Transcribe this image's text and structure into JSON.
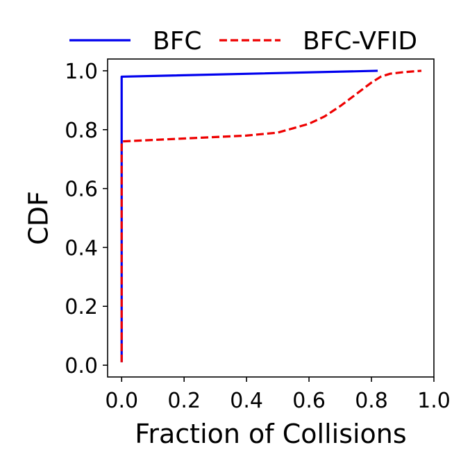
{
  "chart_data": {
    "type": "line",
    "title": "",
    "xlabel": "Fraction of Collisions",
    "ylabel": "CDF",
    "xlim": [
      -0.045,
      1.0
    ],
    "ylim": [
      -0.04,
      1.04
    ],
    "xticks": [
      0.0,
      0.2,
      0.4,
      0.6,
      0.8,
      1.0
    ],
    "xtick_labels": [
      "0.0",
      "0.2",
      "0.4",
      "0.6",
      "0.8",
      "1.0"
    ],
    "yticks": [
      0.0,
      0.2,
      0.4,
      0.6,
      0.8,
      1.0
    ],
    "ytick_labels": [
      "0.0",
      "0.2",
      "0.4",
      "0.6",
      "0.8",
      "1.0"
    ],
    "grid": false,
    "legend": "top, outside plot, horizontal",
    "series": [
      {
        "name": "BFC",
        "color": "#0000ee",
        "style": "solid",
        "x": [
          0.0,
          0.0,
          0.82
        ],
        "y": [
          0.01,
          0.98,
          1.0
        ]
      },
      {
        "name": "BFC-VFID",
        "color": "#ee0000",
        "style": "dashed",
        "x": [
          0.0,
          0.0,
          0.1,
          0.2,
          0.3,
          0.4,
          0.5,
          0.55,
          0.6,
          0.65,
          0.7,
          0.75,
          0.8,
          0.83,
          0.86,
          0.9,
          0.96
        ],
        "y": [
          0.01,
          0.76,
          0.765,
          0.77,
          0.775,
          0.78,
          0.79,
          0.805,
          0.82,
          0.845,
          0.88,
          0.92,
          0.96,
          0.98,
          0.99,
          0.995,
          1.0
        ]
      }
    ]
  }
}
